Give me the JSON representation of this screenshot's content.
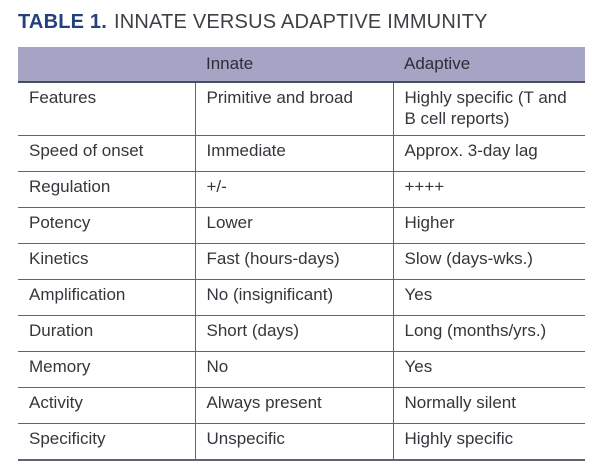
{
  "caption": {
    "label": "TABLE 1.",
    "title": "INNATE VERSUS ADAPTIVE IMMUNITY"
  },
  "table": {
    "columns": [
      "",
      "Innate",
      "Adaptive"
    ],
    "rows": [
      [
        "Features",
        "Primitive and broad",
        "Highly specific (T and B cell reports)"
      ],
      [
        "Speed of onset",
        "Immediate",
        "Approx. 3-day lag"
      ],
      [
        "Regulation",
        "+/-",
        "++++"
      ],
      [
        "Potency",
        "Lower",
        "Higher"
      ],
      [
        "Kinetics",
        "Fast (hours-days)",
        "Slow (days-wks.)"
      ],
      [
        "Amplification",
        "No (insignificant)",
        "Yes"
      ],
      [
        "Duration",
        "Short (days)",
        "Long (months/yrs.)"
      ],
      [
        "Memory",
        "No",
        "Yes"
      ],
      [
        "Activity",
        "Always present",
        "Normally silent"
      ],
      [
        "Specificity",
        "Unspecific",
        "Highly specific"
      ]
    ]
  },
  "colors": {
    "caption_accent": "#24407e",
    "caption_text": "#3f4045",
    "header_background": "#a6a4c4",
    "border_slate": "#5d6572",
    "header_border": "#474f5e",
    "body_text": "#35363c"
  }
}
